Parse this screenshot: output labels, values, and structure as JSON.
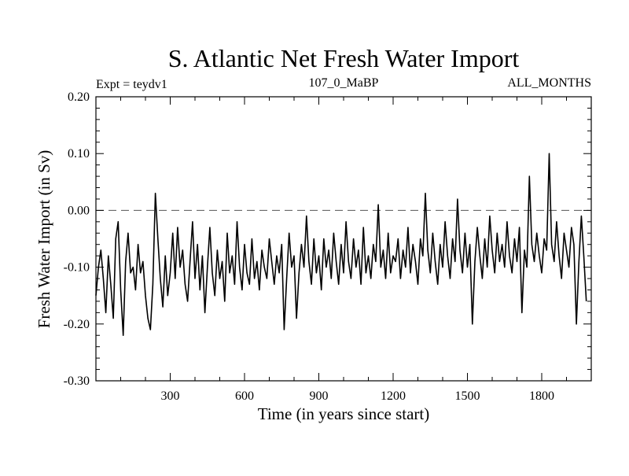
{
  "chart_data": {
    "type": "line",
    "title": "S. Atlantic Net Fresh Water Import",
    "subtitle_left": "Expt = teydv1",
    "subtitle_center": "107_0_MaBP",
    "subtitle_right": "ALL_MONTHS",
    "xlabel": "Time (in years since start)",
    "ylabel": "Fresh Water Import (in Sv)",
    "xlim": [
      0,
      2000
    ],
    "ylim": [
      -0.3,
      0.2
    ],
    "xticks": [
      300,
      600,
      900,
      1200,
      1500,
      1800
    ],
    "xtick_labels": [
      "300",
      "600",
      "900",
      "1200",
      "1500",
      "1800"
    ],
    "yticks": [
      -0.3,
      -0.2,
      -0.1,
      0.0,
      0.1,
      0.2
    ],
    "ytick_labels": [
      "-0.30",
      "-0.20",
      "-0.10",
      "0.00",
      "0.10",
      "0.20"
    ],
    "reference_line": {
      "y": 0.0,
      "style": "dashed"
    },
    "grid": false,
    "series": [
      {
        "name": "Net Fresh Water Import",
        "x_start": 0,
        "x_step": 10,
        "values": [
          -0.15,
          -0.1,
          -0.07,
          -0.12,
          -0.18,
          -0.08,
          -0.13,
          -0.19,
          -0.05,
          -0.02,
          -0.14,
          -0.22,
          -0.09,
          -0.04,
          -0.11,
          -0.1,
          -0.14,
          -0.06,
          -0.11,
          -0.09,
          -0.15,
          -0.19,
          -0.21,
          -0.13,
          0.03,
          -0.05,
          -0.12,
          -0.17,
          -0.08,
          -0.15,
          -0.11,
          -0.04,
          -0.12,
          -0.03,
          -0.1,
          -0.07,
          -0.13,
          -0.16,
          -0.09,
          -0.02,
          -0.12,
          -0.06,
          -0.14,
          -0.08,
          -0.18,
          -0.1,
          -0.03,
          -0.11,
          -0.15,
          -0.07,
          -0.12,
          -0.09,
          -0.16,
          -0.04,
          -0.11,
          -0.08,
          -0.13,
          -0.02,
          -0.1,
          -0.14,
          -0.06,
          -0.11,
          -0.13,
          -0.05,
          -0.12,
          -0.09,
          -0.14,
          -0.07,
          -0.1,
          -0.12,
          -0.05,
          -0.09,
          -0.13,
          -0.08,
          -0.11,
          -0.06,
          -0.21,
          -0.12,
          -0.04,
          -0.1,
          -0.08,
          -0.19,
          -0.11,
          -0.06,
          -0.1,
          -0.01,
          -0.09,
          -0.13,
          -0.05,
          -0.11,
          -0.08,
          -0.14,
          -0.05,
          -0.1,
          -0.07,
          -0.12,
          -0.04,
          -0.09,
          -0.13,
          -0.06,
          -0.11,
          -0.02,
          -0.09,
          -0.12,
          -0.05,
          -0.1,
          -0.07,
          -0.13,
          -0.03,
          -0.11,
          -0.08,
          -0.12,
          -0.06,
          -0.09,
          0.01,
          -0.1,
          -0.07,
          -0.12,
          -0.04,
          -0.11,
          -0.08,
          -0.09,
          -0.05,
          -0.12,
          -0.07,
          -0.1,
          -0.03,
          -0.11,
          -0.06,
          -0.09,
          -0.13,
          -0.05,
          -0.08,
          0.03,
          -0.07,
          -0.11,
          -0.04,
          -0.09,
          -0.13,
          -0.06,
          -0.1,
          -0.02,
          -0.08,
          -0.12,
          -0.05,
          -0.09,
          0.02,
          -0.07,
          -0.11,
          -0.04,
          -0.1,
          -0.06,
          -0.2,
          -0.09,
          -0.03,
          -0.08,
          -0.12,
          -0.05,
          -0.1,
          -0.01,
          -0.07,
          -0.11,
          -0.04,
          -0.09,
          -0.06,
          -0.1,
          -0.02,
          -0.08,
          -0.11,
          -0.05,
          -0.09,
          -0.03,
          -0.18,
          -0.07,
          -0.1,
          0.06,
          -0.06,
          -0.09,
          -0.04,
          -0.08,
          -0.11,
          -0.05,
          -0.07,
          0.1,
          -0.06,
          -0.09,
          -0.02,
          -0.08,
          -0.12,
          -0.04,
          -0.07,
          -0.1,
          -0.03,
          -0.06,
          -0.2,
          -0.09,
          -0.01,
          -0.08,
          -0.16
        ]
      }
    ]
  }
}
